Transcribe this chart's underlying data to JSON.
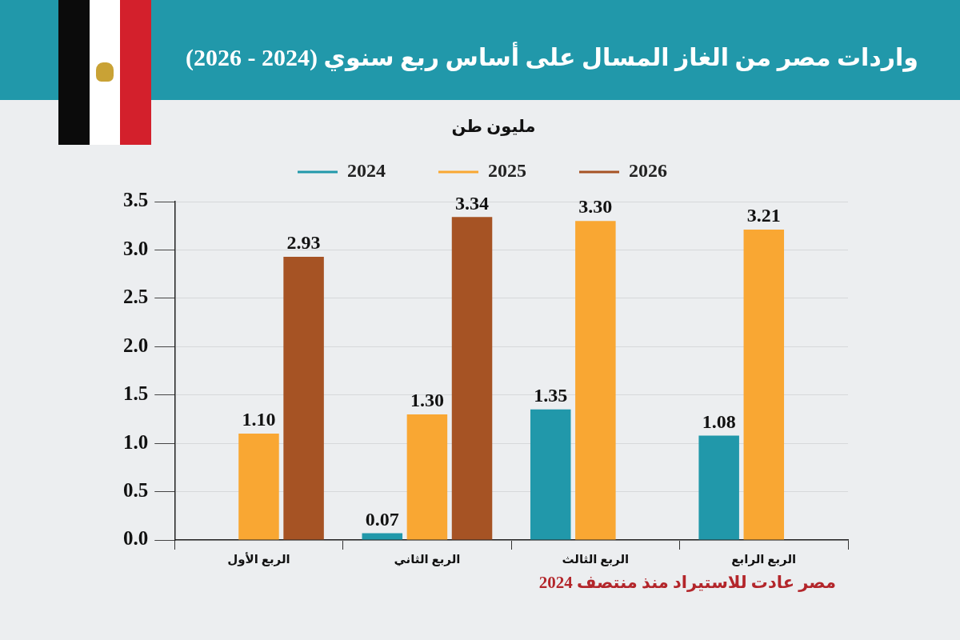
{
  "chart_data": {
    "type": "bar",
    "title": "واردات مصر من الغاز المسال على أساس ربع سنوي (2024 - 2026)",
    "categories": [
      "الربع الأول",
      "الربع الثاني",
      "الربع الثالث",
      "الربع الرابع"
    ],
    "series": [
      {
        "name": "2024",
        "color": "#2198aa",
        "values": [
          null,
          0.07,
          1.35,
          1.08
        ],
        "value_labels": [
          null,
          "0.07",
          "1.35",
          "1.08"
        ]
      },
      {
        "name": "2025",
        "color": "#f9a733",
        "values": [
          1.1,
          1.3,
          3.3,
          3.21
        ],
        "value_labels": [
          "1.10",
          "1.30",
          "3.30",
          "3.21"
        ]
      },
      {
        "name": "2026",
        "color": "#a65324",
        "values": [
          2.93,
          3.34,
          null,
          null
        ],
        "value_labels": [
          "2.93",
          "3.34",
          null,
          null
        ]
      }
    ],
    "ylim": [
      0,
      3.5
    ],
    "yticks": [
      {
        "value": 0,
        "label": "0.0"
      },
      0.5,
      {
        "value": 1,
        "label": "1.0"
      },
      1.5,
      {
        "value": 2,
        "label": "2.0"
      },
      2.5,
      {
        "value": 3,
        "label": "3.0"
      },
      3.5
    ],
    "grid": "y",
    "legend": "top",
    "annotations": [
      "مليون طن",
      "مصر عادت للاستيراد منذ منتصف 2024"
    ]
  }
}
